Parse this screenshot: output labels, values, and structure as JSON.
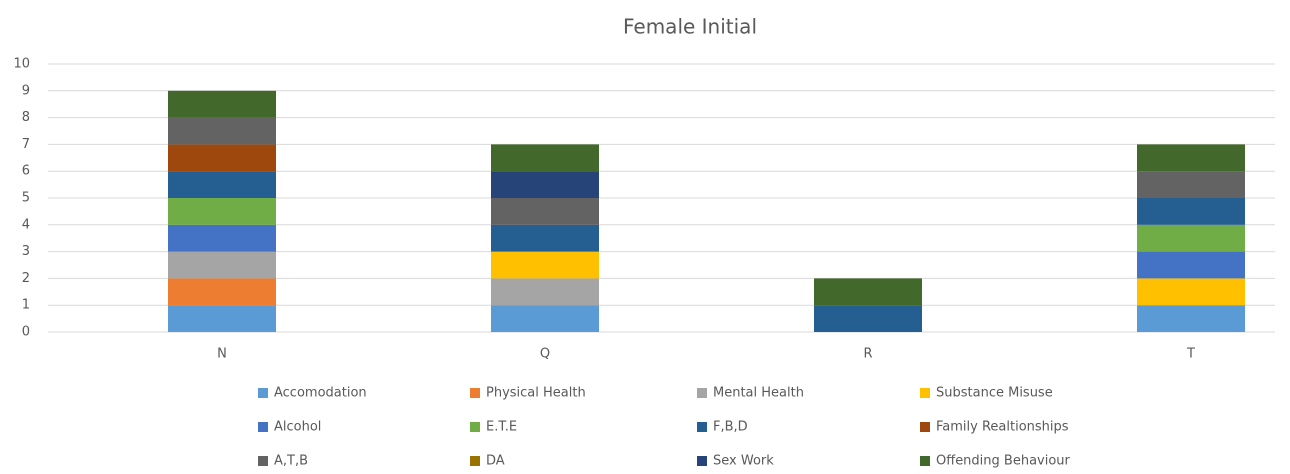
{
  "chart_data": {
    "type": "stacked_bar",
    "title": "Female Initial",
    "categories": [
      "N",
      "Q",
      "R",
      "T"
    ],
    "series": [
      {
        "name": "Accomodation",
        "color": "#5b9bd5",
        "values": [
          1,
          1,
          0,
          1
        ]
      },
      {
        "name": "Physical Health",
        "color": "#ed7d31",
        "values": [
          1,
          0,
          0,
          0
        ]
      },
      {
        "name": "Mental Health",
        "color": "#a5a5a5",
        "values": [
          1,
          1,
          0,
          0
        ]
      },
      {
        "name": "Substance Misuse",
        "color": "#ffc000",
        "values": [
          0,
          1,
          0,
          1
        ]
      },
      {
        "name": "Alcohol",
        "color": "#4472c4",
        "values": [
          1,
          0,
          0,
          1
        ]
      },
      {
        "name": "E.T.E",
        "color": "#70ad47",
        "values": [
          1,
          0,
          0,
          1
        ]
      },
      {
        "name": "F,B,D",
        "color": "#255e91",
        "values": [
          1,
          1,
          1,
          1
        ]
      },
      {
        "name": "Family Realtionships",
        "color": "#9e480e",
        "values": [
          1,
          0,
          0,
          0
        ]
      },
      {
        "name": "A,T,B",
        "color": "#636363",
        "values": [
          1,
          1,
          0,
          1
        ]
      },
      {
        "name": "DA",
        "color": "#997300",
        "values": [
          0,
          0,
          0,
          0
        ]
      },
      {
        "name": "Sex Work",
        "color": "#264478",
        "values": [
          0,
          1,
          0,
          0
        ]
      },
      {
        "name": "Offending Behaviour",
        "color": "#43682b",
        "values": [
          1,
          1,
          1,
          1
        ]
      }
    ],
    "ylim": [
      0,
      10
    ],
    "yticks": [
      0,
      1,
      2,
      3,
      4,
      5,
      6,
      7,
      8,
      9,
      10
    ],
    "grid": true,
    "legend": "bottom"
  }
}
